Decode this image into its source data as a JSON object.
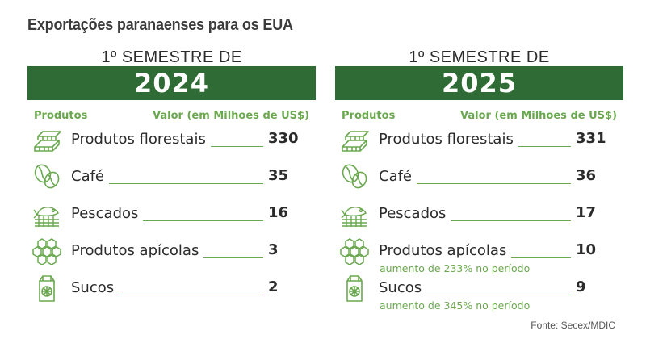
{
  "title": "Exportações paranaenses para os EUA",
  "colors": {
    "bar": "#2f6b34",
    "accent": "#6aa84f",
    "text": "#2b2b2b"
  },
  "panels": [
    {
      "semester": "1º SEMESTRE DE",
      "year": "2024",
      "col_products": "Produtos",
      "col_value": "Valor (em Milhões de US$)",
      "rows": [
        {
          "icon": "wood-planks-icon",
          "label": "Produtos florestais",
          "value": "330"
        },
        {
          "icon": "coffee-beans-icon",
          "label": "Café",
          "value": "35"
        },
        {
          "icon": "fish-icon",
          "label": "Pescados",
          "value": "16"
        },
        {
          "icon": "honeycomb-icon",
          "label": "Produtos apícolas",
          "value": "3"
        },
        {
          "icon": "juice-carton-icon",
          "label": "Sucos",
          "value": "2"
        }
      ]
    },
    {
      "semester": "1º SEMESTRE DE",
      "year": "2025",
      "col_products": "Produtos",
      "col_value": "Valor (em Milhões de US$)",
      "rows": [
        {
          "icon": "wood-planks-icon",
          "label": "Produtos florestais",
          "value": "331"
        },
        {
          "icon": "coffee-beans-icon",
          "label": "Café",
          "value": "36"
        },
        {
          "icon": "fish-icon",
          "label": "Pescados",
          "value": "17"
        },
        {
          "icon": "honeycomb-icon",
          "label": "Produtos apícolas",
          "value": "10",
          "note": "aumento de 233% no período"
        },
        {
          "icon": "juice-carton-icon",
          "label": "Sucos",
          "value": "9",
          "note": "aumento de 345% no período"
        }
      ]
    }
  ],
  "source": "Fonte: Secex/MDIC"
}
